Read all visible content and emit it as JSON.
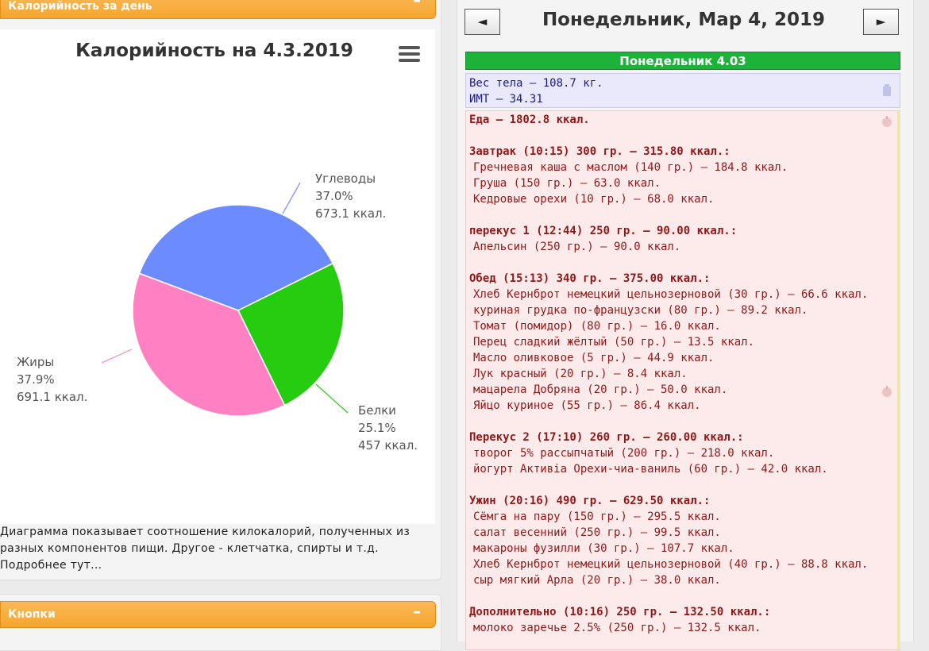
{
  "left": {
    "panel_title": "Калорийность за день",
    "minimize_symbol": "–",
    "chart_note": "Диаграмма показывает соотношение килокалорий, полученных из разных компонентов пищи. Другое - клетчатка, спирты и т.д. Подробнее тут...",
    "buttons_panel_title": "Кнопки"
  },
  "chart_data": {
    "type": "pie",
    "title": "Калорийность на 4.3.2019",
    "slices": [
      {
        "name": "Углеводы",
        "percent_label": "37.0%",
        "kcal_label": "673.1 ккал.",
        "value": 673.1,
        "color": "#6b8bff"
      },
      {
        "name": "Белки",
        "percent_label": "25.1%",
        "kcal_label": "457 ккал.",
        "value": 457,
        "color": "#26cc10"
      },
      {
        "name": "Жиры",
        "percent_label": "37.9%",
        "kcal_label": "691.1 ккал.",
        "value": 691.1,
        "color": "#ff80c3"
      }
    ]
  },
  "right": {
    "prev_symbol": "◄",
    "next_symbol": "►",
    "date_title": "Понедельник, Мар 4, 2019",
    "day_header": "Понедельник 4.03",
    "weight_line": "Вес тела — 108.7 кг.",
    "bmi_line": "ИМТ — 34.31",
    "food_total": "Еда — 1802.8 ккал.",
    "meals": [
      {
        "title": "Завтрак (10:15) 300 гр. — 315.80 ккал.:",
        "items": [
          "Гречневая каша с маслом (140 гр.) — 184.8 ккал.",
          "Груша (150 гр.) — 63.0 ккал.",
          "Кедровые орехи (10 гр.) — 68.0 ккал."
        ]
      },
      {
        "title": "перекус 1 (12:44) 250 гр. — 90.00 ккал.:",
        "items": [
          "Апельсин (250 гр.) — 90.0 ккал."
        ]
      },
      {
        "title": "Обед (15:13) 340 гр. — 375.00 ккал.:",
        "items": [
          "Хлеб Кернброт немецкий цельнозерновой (30 гр.) — 66.6 ккал.",
          "куриная грудка по-французски (80 гр.) — 89.2 ккал.",
          "Томат (помидор) (80 гр.) — 16.0 ккал.",
          "Перец сладкий жёлтый (50 гр.) — 13.5 ккал.",
          "Масло оливковое (5 гр.) — 44.9 ккал.",
          "Лук красный (20 гр.) — 8.4 ккал.",
          "мацарела Добряна (20 гр.) — 50.0 ккал.",
          "Яйцо куриное (55 гр.) — 86.4 ккал."
        ]
      },
      {
        "title": "Перекус 2 (17:10) 260 гр. — 260.00 ккал.:",
        "items": [
          "творог 5% рассыпчатый (200 гр.) — 218.0 ккал.",
          "йогурт Активіа Орехи-чиа-ваниль (60 гр.) — 42.0 ккал."
        ]
      },
      {
        "title": "Ужин (20:16) 490 гр. — 629.50 ккал.:",
        "items": [
          "Сёмга на пару (150 гр.) — 295.5 ккал.",
          "салат весенний (250 гр.) — 99.5 ккал.",
          "макароны фузилли (30 гр.) — 107.7 ккал.",
          "Хлеб Кернброт немецкий цельнозерновой (40 гр.) — 88.8 ккал.",
          "сыр мягкий Арла (20 гр.) — 38.0 ккал."
        ]
      },
      {
        "title": "Дополнительно (10:16) 250 гр. — 132.50 ккал.:",
        "items": [
          "молоко заречье 2.5% (250 гр.) — 132.5 ккал."
        ]
      }
    ]
  }
}
